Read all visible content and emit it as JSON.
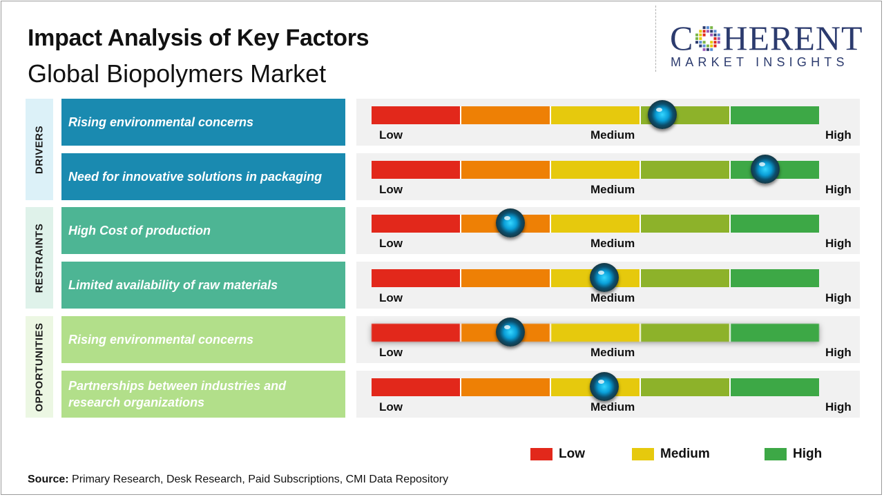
{
  "title": "Impact Analysis of Key Factors",
  "subtitle": "Global Biopolymers Market",
  "logo": {
    "top_left": "C",
    "top_right": "HERENT",
    "bottom": "MARKET INSIGHTS"
  },
  "colors": {
    "low": "#e2281b",
    "low_mid": "#ee8005",
    "medium": "#e6c90d",
    "mid_high": "#8db22a",
    "high": "#3da846",
    "drivers": "#1a8ab0",
    "restraints": "#4db594",
    "opportunities": "#b2df8a",
    "drivers_label_bg": "#dcf1f8",
    "restraints_label_bg": "#dff2ea",
    "opportunities_label_bg": "#ecf7e3"
  },
  "chart_data": {
    "type": "table",
    "scale": {
      "labels": [
        "Low",
        "Medium",
        "High"
      ],
      "min": 0,
      "max": 1
    },
    "groups": [
      {
        "name": "DRIVERS",
        "factors": [
          {
            "label": "Rising environmental concerns",
            "impact": 0.65
          },
          {
            "label": "Need for innovative solutions in packaging",
            "impact": 0.88
          }
        ]
      },
      {
        "name": "RESTRAINTS",
        "factors": [
          {
            "label": "High Cost of production",
            "impact": 0.31
          },
          {
            "label": "Limited availability of raw materials",
            "impact": 0.52
          }
        ]
      },
      {
        "name": "OPPORTUNITIES",
        "factors": [
          {
            "label": "Rising environmental concerns",
            "impact": 0.31
          },
          {
            "label": "Partnerships between industries and research organizations",
            "impact": 0.52
          }
        ]
      }
    ],
    "legend": [
      {
        "label": "Low",
        "color": "#e2281b"
      },
      {
        "label": "Medium",
        "color": "#e6c90d"
      },
      {
        "label": "High",
        "color": "#3da846"
      }
    ]
  },
  "source": {
    "label": "Source:",
    "text": " Primary Research, Desk Research, Paid Subscriptions, CMI Data Repository"
  }
}
